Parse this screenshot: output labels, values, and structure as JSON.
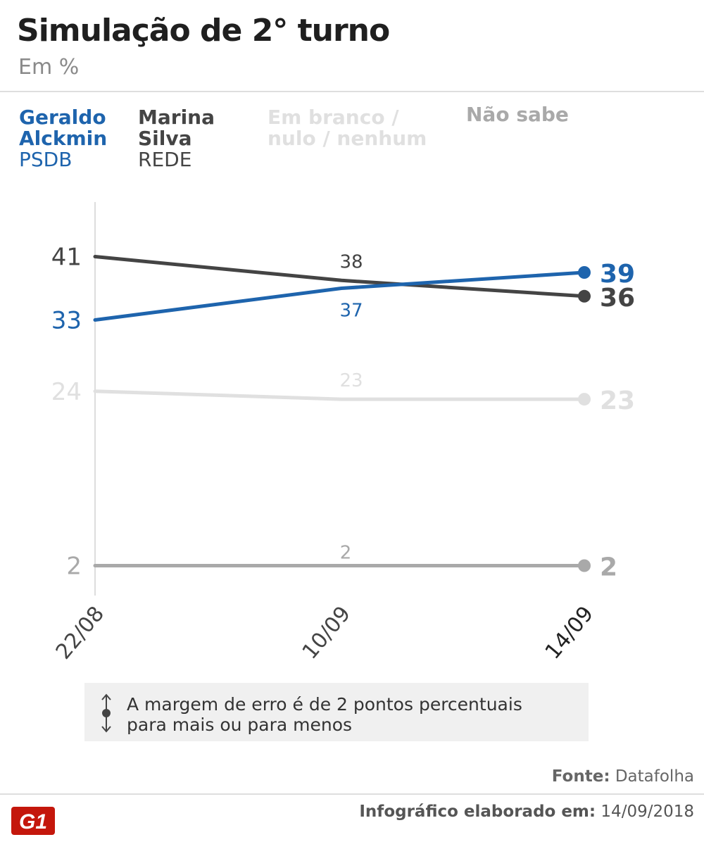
{
  "header": {
    "title": "Simulação de 2° turno",
    "subtitle": "Em %"
  },
  "legend": [
    {
      "name": "Geraldo Alckmin",
      "party": "PSDB",
      "color": "#1e64ad"
    },
    {
      "name": "Marina Silva",
      "party": "REDE",
      "color": "#444444"
    },
    {
      "name": "Em branco / nulo / nenhum",
      "party": "",
      "color": "#e0e0e0"
    },
    {
      "name": "Não sabe",
      "party": "",
      "color": "#a9a9a9"
    }
  ],
  "chart_data": {
    "type": "line",
    "x": [
      "22/08",
      "10/09",
      "14/09"
    ],
    "series": [
      {
        "name": "Geraldo Alckmin",
        "party": "PSDB",
        "color": "#1e64ad",
        "values": [
          33,
          37,
          39
        ]
      },
      {
        "name": "Marina Silva",
        "party": "REDE",
        "color": "#444444",
        "values": [
          41,
          38,
          36
        ]
      },
      {
        "name": "Em branco / nulo / nenhum",
        "color": "#e0e0e0",
        "values": [
          24,
          23,
          23
        ]
      },
      {
        "name": "Não sabe",
        "color": "#a9a9a9",
        "values": [
          2,
          2,
          2
        ]
      }
    ],
    "ylim": [
      0,
      50
    ],
    "grid": false,
    "legend_position": "top"
  },
  "note": {
    "icon": "up-down-arrow-icon",
    "line1": "A margem de erro é de 2 pontos percentuais",
    "line2": "para mais ou para menos"
  },
  "source": {
    "label": "Fonte:",
    "value": "Datafolha"
  },
  "footer": {
    "label": "Infográfico elaborado em:",
    "date": "14/09/2018"
  },
  "logo": {
    "icon": "g1-logo-icon",
    "text": "G1",
    "color": "#c4170c"
  }
}
